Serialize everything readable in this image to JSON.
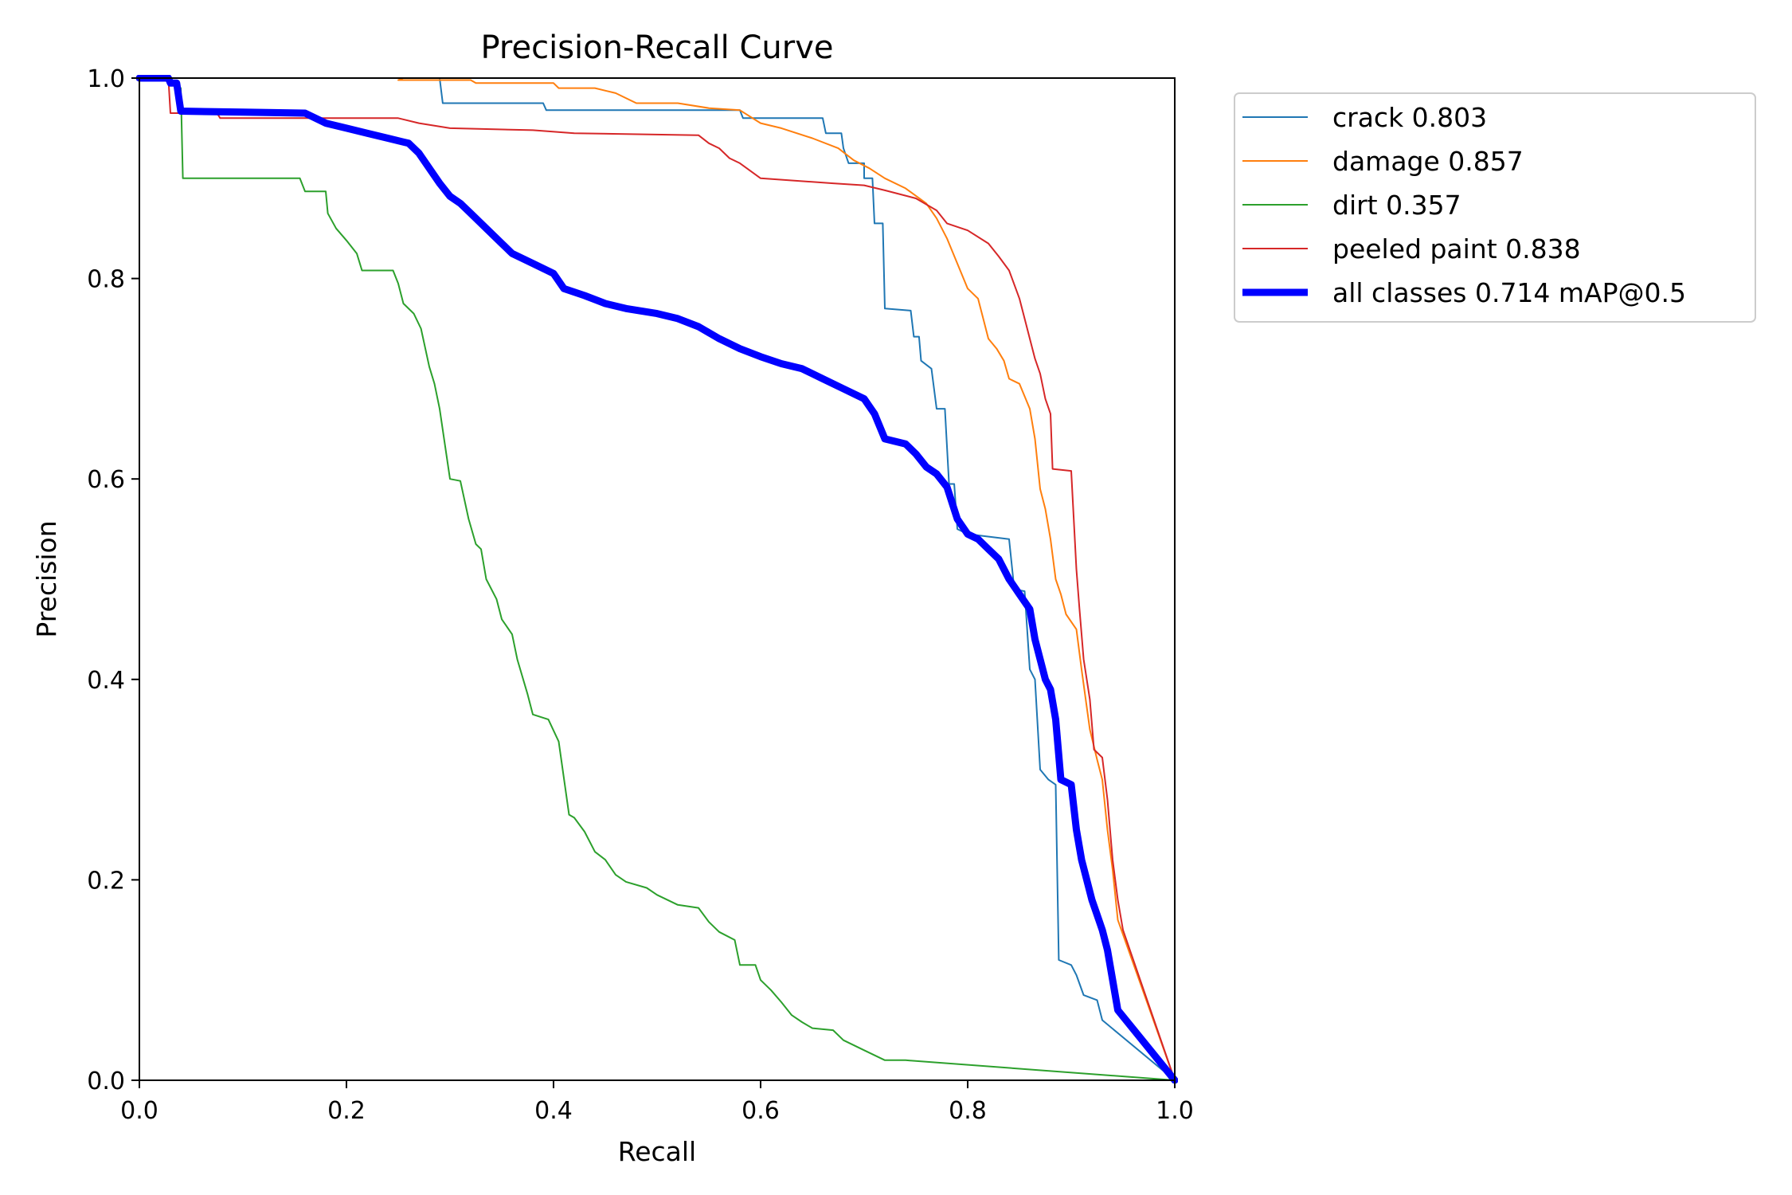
{
  "chart_data": {
    "type": "line",
    "title": "Precision-Recall Curve",
    "xlabel": "Recall",
    "ylabel": "Precision",
    "xlim": [
      0.0,
      1.0
    ],
    "ylim": [
      0.0,
      1.0
    ],
    "xticks": [
      "0.0",
      "0.2",
      "0.4",
      "0.6",
      "0.8",
      "1.0"
    ],
    "yticks": [
      "0.0",
      "0.2",
      "0.4",
      "0.6",
      "0.8",
      "1.0"
    ],
    "grid": false,
    "legend_position": "outside-top-right",
    "series": [
      {
        "name": "crack 0.803",
        "color": "#1f77b4",
        "points": [
          [
            0.0,
            1.0
          ],
          [
            0.29,
            1.0
          ],
          [
            0.293,
            0.975
          ],
          [
            0.39,
            0.975
          ],
          [
            0.393,
            0.968
          ],
          [
            0.58,
            0.968
          ],
          [
            0.583,
            0.96
          ],
          [
            0.66,
            0.96
          ],
          [
            0.663,
            0.945
          ],
          [
            0.678,
            0.945
          ],
          [
            0.68,
            0.93
          ],
          [
            0.685,
            0.915
          ],
          [
            0.7,
            0.915
          ],
          [
            0.7,
            0.9
          ],
          [
            0.708,
            0.9
          ],
          [
            0.71,
            0.855
          ],
          [
            0.718,
            0.855
          ],
          [
            0.72,
            0.77
          ],
          [
            0.745,
            0.768
          ],
          [
            0.748,
            0.742
          ],
          [
            0.753,
            0.742
          ],
          [
            0.755,
            0.718
          ],
          [
            0.765,
            0.71
          ],
          [
            0.77,
            0.67
          ],
          [
            0.778,
            0.67
          ],
          [
            0.782,
            0.595
          ],
          [
            0.787,
            0.595
          ],
          [
            0.79,
            0.55
          ],
          [
            0.8,
            0.545
          ],
          [
            0.84,
            0.54
          ],
          [
            0.845,
            0.49
          ],
          [
            0.855,
            0.488
          ],
          [
            0.86,
            0.41
          ],
          [
            0.865,
            0.4
          ],
          [
            0.87,
            0.31
          ],
          [
            0.878,
            0.3
          ],
          [
            0.885,
            0.295
          ],
          [
            0.888,
            0.12
          ],
          [
            0.9,
            0.115
          ],
          [
            0.905,
            0.105
          ],
          [
            0.912,
            0.085
          ],
          [
            0.925,
            0.08
          ],
          [
            0.93,
            0.06
          ],
          [
            1.0,
            0.0
          ]
        ]
      },
      {
        "name": "damage 0.857",
        "color": "#ff7f0e",
        "points": [
          [
            0.255,
            1.0
          ],
          [
            0.25,
            0.998
          ],
          [
            0.32,
            0.998
          ],
          [
            0.325,
            0.995
          ],
          [
            0.4,
            0.995
          ],
          [
            0.405,
            0.99
          ],
          [
            0.44,
            0.99
          ],
          [
            0.46,
            0.985
          ],
          [
            0.48,
            0.975
          ],
          [
            0.52,
            0.975
          ],
          [
            0.55,
            0.97
          ],
          [
            0.58,
            0.968
          ],
          [
            0.6,
            0.955
          ],
          [
            0.62,
            0.95
          ],
          [
            0.65,
            0.94
          ],
          [
            0.675,
            0.93
          ],
          [
            0.69,
            0.918
          ],
          [
            0.705,
            0.91
          ],
          [
            0.72,
            0.9
          ],
          [
            0.74,
            0.89
          ],
          [
            0.76,
            0.875
          ],
          [
            0.77,
            0.86
          ],
          [
            0.78,
            0.84
          ],
          [
            0.79,
            0.815
          ],
          [
            0.8,
            0.79
          ],
          [
            0.81,
            0.78
          ],
          [
            0.815,
            0.76
          ],
          [
            0.82,
            0.74
          ],
          [
            0.828,
            0.73
          ],
          [
            0.835,
            0.718
          ],
          [
            0.84,
            0.7
          ],
          [
            0.85,
            0.695
          ],
          [
            0.86,
            0.67
          ],
          [
            0.865,
            0.64
          ],
          [
            0.87,
            0.59
          ],
          [
            0.875,
            0.57
          ],
          [
            0.88,
            0.54
          ],
          [
            0.885,
            0.5
          ],
          [
            0.89,
            0.485
          ],
          [
            0.895,
            0.465
          ],
          [
            0.905,
            0.45
          ],
          [
            0.91,
            0.41
          ],
          [
            0.918,
            0.35
          ],
          [
            0.925,
            0.32
          ],
          [
            0.93,
            0.3
          ],
          [
            0.935,
            0.25
          ],
          [
            0.94,
            0.21
          ],
          [
            0.945,
            0.16
          ],
          [
            1.0,
            0.0
          ]
        ]
      },
      {
        "name": "dirt 0.357",
        "color": "#2ca02c",
        "points": [
          [
            0.0,
            1.0
          ],
          [
            0.03,
            1.0
          ],
          [
            0.04,
            0.99
          ],
          [
            0.042,
            0.9
          ],
          [
            0.155,
            0.9
          ],
          [
            0.16,
            0.887
          ],
          [
            0.18,
            0.887
          ],
          [
            0.182,
            0.865
          ],
          [
            0.19,
            0.85
          ],
          [
            0.2,
            0.838
          ],
          [
            0.21,
            0.825
          ],
          [
            0.215,
            0.808
          ],
          [
            0.245,
            0.808
          ],
          [
            0.25,
            0.795
          ],
          [
            0.255,
            0.775
          ],
          [
            0.265,
            0.765
          ],
          [
            0.272,
            0.75
          ],
          [
            0.28,
            0.712
          ],
          [
            0.285,
            0.695
          ],
          [
            0.29,
            0.67
          ],
          [
            0.295,
            0.635
          ],
          [
            0.3,
            0.6
          ],
          [
            0.31,
            0.598
          ],
          [
            0.318,
            0.56
          ],
          [
            0.325,
            0.535
          ],
          [
            0.33,
            0.53
          ],
          [
            0.335,
            0.5
          ],
          [
            0.345,
            0.48
          ],
          [
            0.35,
            0.46
          ],
          [
            0.36,
            0.445
          ],
          [
            0.365,
            0.42
          ],
          [
            0.375,
            0.385
          ],
          [
            0.38,
            0.365
          ],
          [
            0.395,
            0.36
          ],
          [
            0.405,
            0.338
          ],
          [
            0.415,
            0.265
          ],
          [
            0.42,
            0.262
          ],
          [
            0.43,
            0.248
          ],
          [
            0.44,
            0.228
          ],
          [
            0.45,
            0.22
          ],
          [
            0.46,
            0.205
          ],
          [
            0.47,
            0.198
          ],
          [
            0.49,
            0.192
          ],
          [
            0.5,
            0.185
          ],
          [
            0.52,
            0.175
          ],
          [
            0.54,
            0.172
          ],
          [
            0.55,
            0.158
          ],
          [
            0.56,
            0.148
          ],
          [
            0.575,
            0.14
          ],
          [
            0.58,
            0.115
          ],
          [
            0.595,
            0.115
          ],
          [
            0.6,
            0.1
          ],
          [
            0.61,
            0.09
          ],
          [
            0.62,
            0.078
          ],
          [
            0.63,
            0.065
          ],
          [
            0.64,
            0.058
          ],
          [
            0.65,
            0.052
          ],
          [
            0.67,
            0.05
          ],
          [
            0.68,
            0.04
          ],
          [
            0.7,
            0.03
          ],
          [
            0.72,
            0.02
          ],
          [
            0.74,
            0.02
          ],
          [
            1.0,
            0.0
          ]
        ]
      },
      {
        "name": "peeled paint 0.838",
        "color": "#d62728",
        "points": [
          [
            0.0,
            1.0
          ],
          [
            0.028,
            1.0
          ],
          [
            0.03,
            0.965
          ],
          [
            0.075,
            0.965
          ],
          [
            0.078,
            0.96
          ],
          [
            0.25,
            0.96
          ],
          [
            0.27,
            0.955
          ],
          [
            0.3,
            0.95
          ],
          [
            0.38,
            0.948
          ],
          [
            0.42,
            0.945
          ],
          [
            0.54,
            0.943
          ],
          [
            0.55,
            0.935
          ],
          [
            0.56,
            0.93
          ],
          [
            0.57,
            0.92
          ],
          [
            0.58,
            0.915
          ],
          [
            0.6,
            0.9
          ],
          [
            0.67,
            0.895
          ],
          [
            0.7,
            0.893
          ],
          [
            0.72,
            0.888
          ],
          [
            0.75,
            0.88
          ],
          [
            0.77,
            0.868
          ],
          [
            0.78,
            0.855
          ],
          [
            0.8,
            0.848
          ],
          [
            0.82,
            0.835
          ],
          [
            0.83,
            0.822
          ],
          [
            0.84,
            0.808
          ],
          [
            0.85,
            0.78
          ],
          [
            0.855,
            0.76
          ],
          [
            0.86,
            0.74
          ],
          [
            0.865,
            0.72
          ],
          [
            0.87,
            0.705
          ],
          [
            0.875,
            0.68
          ],
          [
            0.88,
            0.665
          ],
          [
            0.882,
            0.61
          ],
          [
            0.9,
            0.608
          ],
          [
            0.905,
            0.51
          ],
          [
            0.908,
            0.47
          ],
          [
            0.912,
            0.42
          ],
          [
            0.918,
            0.38
          ],
          [
            0.922,
            0.33
          ],
          [
            0.93,
            0.322
          ],
          [
            0.935,
            0.28
          ],
          [
            0.94,
            0.22
          ],
          [
            0.945,
            0.18
          ],
          [
            0.95,
            0.15
          ],
          [
            1.0,
            0.0
          ]
        ]
      },
      {
        "name": "all classes 0.714 mAP@0.5",
        "color": "#0000ff",
        "points": [
          [
            0.0,
            1.0
          ],
          [
            0.028,
            1.0
          ],
          [
            0.03,
            0.995
          ],
          [
            0.036,
            0.995
          ],
          [
            0.04,
            0.967
          ],
          [
            0.1,
            0.966
          ],
          [
            0.16,
            0.965
          ],
          [
            0.18,
            0.955
          ],
          [
            0.2,
            0.95
          ],
          [
            0.22,
            0.945
          ],
          [
            0.24,
            0.94
          ],
          [
            0.26,
            0.935
          ],
          [
            0.27,
            0.925
          ],
          [
            0.28,
            0.91
          ],
          [
            0.29,
            0.895
          ],
          [
            0.3,
            0.882
          ],
          [
            0.31,
            0.875
          ],
          [
            0.32,
            0.865
          ],
          [
            0.33,
            0.855
          ],
          [
            0.34,
            0.845
          ],
          [
            0.35,
            0.835
          ],
          [
            0.36,
            0.825
          ],
          [
            0.38,
            0.815
          ],
          [
            0.4,
            0.805
          ],
          [
            0.41,
            0.79
          ],
          [
            0.43,
            0.783
          ],
          [
            0.45,
            0.775
          ],
          [
            0.47,
            0.77
          ],
          [
            0.5,
            0.765
          ],
          [
            0.52,
            0.76
          ],
          [
            0.54,
            0.752
          ],
          [
            0.56,
            0.74
          ],
          [
            0.58,
            0.73
          ],
          [
            0.6,
            0.722
          ],
          [
            0.62,
            0.715
          ],
          [
            0.64,
            0.71
          ],
          [
            0.66,
            0.7
          ],
          [
            0.68,
            0.69
          ],
          [
            0.7,
            0.68
          ],
          [
            0.71,
            0.665
          ],
          [
            0.72,
            0.64
          ],
          [
            0.74,
            0.635
          ],
          [
            0.75,
            0.625
          ],
          [
            0.76,
            0.612
          ],
          [
            0.77,
            0.605
          ],
          [
            0.78,
            0.592
          ],
          [
            0.79,
            0.56
          ],
          [
            0.8,
            0.545
          ],
          [
            0.81,
            0.54
          ],
          [
            0.82,
            0.53
          ],
          [
            0.83,
            0.52
          ],
          [
            0.84,
            0.5
          ],
          [
            0.85,
            0.485
          ],
          [
            0.86,
            0.47
          ],
          [
            0.865,
            0.44
          ],
          [
            0.87,
            0.42
          ],
          [
            0.875,
            0.4
          ],
          [
            0.88,
            0.39
          ],
          [
            0.885,
            0.36
          ],
          [
            0.89,
            0.3
          ],
          [
            0.9,
            0.295
          ],
          [
            0.905,
            0.25
          ],
          [
            0.91,
            0.22
          ],
          [
            0.915,
            0.2
          ],
          [
            0.92,
            0.18
          ],
          [
            0.925,
            0.165
          ],
          [
            0.93,
            0.15
          ],
          [
            0.935,
            0.13
          ],
          [
            0.94,
            0.1
          ],
          [
            0.945,
            0.07
          ],
          [
            1.0,
            0.0
          ]
        ]
      }
    ]
  }
}
